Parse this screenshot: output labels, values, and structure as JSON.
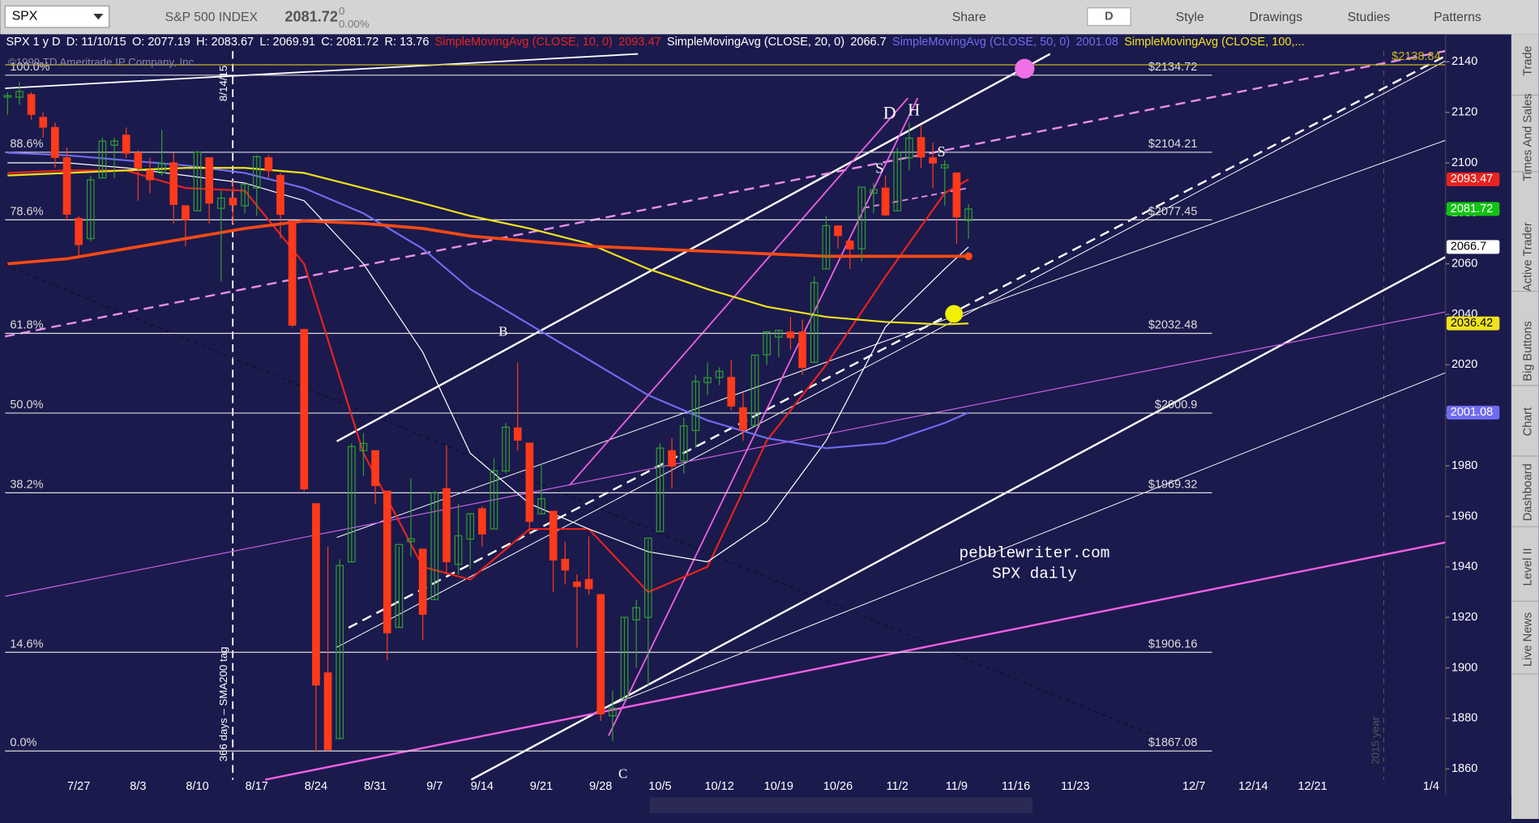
{
  "toolbar": {
    "symbol": "SPX",
    "name": "S&P 500 INDEX",
    "last": 2081.72,
    "change": 0,
    "change_pct": "0.00%",
    "period": "D",
    "buttons": [
      "Share",
      "Style",
      "Drawings",
      "Studies",
      "Patterns"
    ]
  },
  "sidebar": [
    "Trade",
    "Times And Sales",
    "Active Trader",
    "Big Buttons",
    "Chart",
    "Dashboard",
    "Level II",
    "Live News"
  ],
  "chart_data": {
    "type": "candlestick",
    "header": "SPX 1 y D",
    "header_fields": [
      "D: 11/10/15",
      "O: 2077.19",
      "H: 2083.67",
      "L: 2069.91",
      "C: 2081.72",
      "R: 13.76"
    ],
    "up_color": "#2f9e2f",
    "down_color": "#ff3a1a",
    "categories": [
      "7/17",
      "7/20",
      "7/21",
      "7/22",
      "7/23",
      "7/24",
      "7/27",
      "7/28",
      "7/29",
      "7/30",
      "7/31",
      "8/3",
      "8/4",
      "8/5",
      "8/6",
      "8/7",
      "8/10",
      "8/11",
      "8/12",
      "8/13",
      "8/14",
      "8/17",
      "8/18",
      "8/19",
      "8/20",
      "8/21",
      "8/24",
      "8/25",
      "8/26",
      "8/27",
      "8/28",
      "8/31",
      "9/1",
      "9/2",
      "9/3",
      "9/4",
      "9/8",
      "9/9",
      "9/10",
      "9/11",
      "9/14",
      "9/15",
      "9/16",
      "9/17",
      "9/18",
      "9/21",
      "9/22",
      "9/23",
      "9/24",
      "9/25",
      "9/28",
      "9/29",
      "9/30",
      "10/1",
      "10/2",
      "10/5",
      "10/6",
      "10/7",
      "10/8",
      "10/9",
      "10/12",
      "10/13",
      "10/14",
      "10/15",
      "10/16",
      "10/19",
      "10/20",
      "10/21",
      "10/22",
      "10/23",
      "10/26",
      "10/27",
      "10/28",
      "10/29",
      "10/30",
      "11/2",
      "11/3",
      "11/4",
      "11/5",
      "11/6",
      "11/9",
      "11/10"
    ],
    "open": [
      2126,
      2126,
      2127,
      2118,
      2114,
      2102,
      2078,
      2070,
      2094,
      2107,
      2111,
      2104,
      2097,
      2096,
      2100,
      2083,
      2081,
      2102,
      2082,
      2086,
      2083,
      2090,
      2102,
      2095,
      2077,
      2034,
      1965,
      1898,
      1872,
      1942,
      1986,
      1986,
      1970,
      1916,
      1950,
      1947,
      1927,
      1971,
      1941,
      1951,
      1963,
      1955,
      1978,
      1995,
      1989,
      1961,
      1962,
      1943,
      1934,
      1935,
      1929,
      1881,
      1888,
      1919,
      1920,
      1954,
      1986,
      1982,
      1994,
      2013,
      2015,
      2015,
      2003,
      1996,
      2024,
      2031,
      2033,
      2033,
      2021,
      2058,
      2075,
      2069,
      2066,
      2088,
      2090,
      2081,
      2102,
      2110,
      2102,
      2098,
      2096,
      2077.19
    ],
    "high": [
      2128,
      2132,
      2128,
      2120,
      2116,
      2106,
      2079,
      2095,
      2110,
      2110,
      2114,
      2105,
      2102,
      2113,
      2104,
      2083,
      2105,
      2102,
      2089,
      2093,
      2092,
      2103,
      2103,
      2096,
      2077,
      2034,
      1965,
      1948,
      1943,
      1989,
      1993,
      1986,
      1970,
      1948,
      1975,
      1947,
      1970,
      1988,
      1965,
      1961,
      1964,
      1983,
      1997,
      2021,
      1989,
      1981,
      1962,
      1950,
      1937,
      1952,
      1929,
      1891,
      1920,
      1927,
      1951,
      1989,
      1991,
      1999,
      2016,
      2021,
      2019,
      2022,
      2009,
      2024,
      2033,
      2034,
      2039,
      2038,
      2055,
      2079,
      2075,
      2070,
      2090,
      2092,
      2095,
      2106,
      2116,
      2115,
      2108,
      2101,
      2096,
      2083.67
    ],
    "low": [
      2119,
      2123,
      2117,
      2110,
      2098,
      2077,
      2063,
      2069,
      2094,
      2094,
      2102,
      2085,
      2088,
      2095,
      2076,
      2067,
      2081,
      2076,
      2053,
      2076,
      2080,
      2079,
      2094,
      2070,
      2035,
      1970,
      1867,
      1867,
      1872,
      1942,
      1976,
      1965,
      1903,
      1916,
      1944,
      1911,
      1927,
      1937,
      1937,
      1939,
      1948,
      1955,
      1977,
      1986,
      1953,
      1961,
      1930,
      1933,
      1908,
      1929,
      1879,
      1871,
      1888,
      1900,
      1893,
      1954,
      1971,
      1977,
      1987,
      2008,
      2012,
      2002,
      1990,
      1996,
      2020,
      2023,
      2026,
      2016,
      2021,
      2058,
      2066,
      2058,
      2061,
      2080,
      2079,
      2081,
      2097,
      2098,
      2090,
      2083,
      2068,
      2069.91
    ],
    "close": [
      2126.64,
      2128.28,
      2119.21,
      2114.15,
      2102.15,
      2079.65,
      2067.64,
      2093.25,
      2108.57,
      2108.63,
      2103.84,
      2098.04,
      2093.32,
      2099.84,
      2083.56,
      2077.57,
      2104.18,
      2084.07,
      2086.05,
      2083.39,
      2091.54,
      2102.44,
      2096.92,
      2079.61,
      2035.73,
      1970.89,
      1893.21,
      1867.61,
      1940.51,
      1987.66,
      1988.87,
      1972.18,
      1913.85,
      1948.86,
      1951.13,
      1921.22,
      1969.41,
      1942.04,
      1952.29,
      1961.05,
      1953.03,
      1978.09,
      1995.31,
      1990.2,
      1958.03,
      1966.97,
      1942.74,
      1938.76,
      1932.24,
      1931.34,
      1881.77,
      1884.09,
      1920.03,
      1923.82,
      1951.36,
      1987.05,
      1979.92,
      1995.83,
      2013.43,
      2014.89,
      2017.46,
      2003.69,
      1994.24,
      2023.86,
      2033.11,
      2033.66,
      2030.77,
      2018.94,
      2052.51,
      2075.15,
      2071.18,
      2065.89,
      2090.35,
      2089.41,
      2079.36,
      2104.05,
      2109.79,
      2102.31,
      2099.93,
      2099.2,
      2078.58,
      2081.72
    ],
    "series": [
      {
        "name": "SimpleMovingAvg (CLOSE, 10, 0)",
        "color": "#e8231e",
        "tag": 2093.47,
        "legend_shows_tag": true,
        "x": [
          "7/17",
          "7/24",
          "7/31",
          "8/7",
          "8/14",
          "8/21",
          "8/28",
          "9/4",
          "9/11",
          "9/18",
          "9/25",
          "10/2",
          "10/9",
          "10/16",
          "10/23",
          "10/30",
          "11/6",
          "11/10"
        ],
        "values": [
          2096,
          2097,
          2097,
          2090,
          2089,
          2060,
          1985,
          1940,
          1935,
          1955,
          1955,
          1930,
          1940,
          1990,
          2020,
          2055,
          2088,
          2093.47
        ]
      },
      {
        "name": "SimpleMovingAvg (CLOSE, 20, 0)",
        "color": "#ffffff",
        "tag": 2066.7,
        "legend_shows_tag": true,
        "x": [
          "7/17",
          "7/24",
          "7/31",
          "8/7",
          "8/14",
          "8/21",
          "8/28",
          "9/4",
          "9/11",
          "9/18",
          "9/25",
          "10/2",
          "10/9",
          "10/16",
          "10/23",
          "10/30",
          "11/6",
          "11/10"
        ],
        "values": [
          2100,
          2100,
          2098,
          2095,
          2092,
          2085,
          2060,
          2025,
          1985,
          1965,
          1955,
          1946,
          1942,
          1958,
          1990,
          2035,
          2058,
          2066.7
        ]
      },
      {
        "name": "SimpleMovingAvg (CLOSE, 50, 0)",
        "color": "#6f6cf0",
        "tag": 2001.08,
        "legend_shows_tag": true,
        "x": [
          "7/17",
          "7/24",
          "7/31",
          "8/7",
          "8/14",
          "8/21",
          "8/28",
          "9/4",
          "9/11",
          "9/18",
          "9/25",
          "10/2",
          "10/9",
          "10/16",
          "10/23",
          "10/30",
          "11/6",
          "11/10"
        ],
        "values": [
          2104,
          2103,
          2101,
          2099,
          2096,
          2090,
          2080,
          2066,
          2050,
          2036,
          2022,
          2008,
          1998,
          1991,
          1987,
          1989,
          1997,
          2001.08
        ]
      },
      {
        "name": "SimpleMovingAvg (CLOSE, 100,...",
        "color": "#f0e21c",
        "tag": 2036.42,
        "legend_shows_tag": false,
        "x": [
          "7/17",
          "7/24",
          "7/31",
          "8/7",
          "8/14",
          "8/21",
          "8/28",
          "9/4",
          "9/11",
          "9/18",
          "9/25",
          "10/2",
          "10/9",
          "10/16",
          "10/23",
          "10/30",
          "11/6",
          "11/10"
        ],
        "values": [
          2095,
          2096,
          2097,
          2098,
          2098,
          2096,
          2090,
          2084,
          2079,
          2074,
          2068,
          2058,
          2050,
          2043,
          2039,
          2037,
          2036,
          2036.42
        ]
      },
      {
        "color": "#ff4a14",
        "x": [
          "7/17",
          "7/24",
          "7/31",
          "8/7",
          "8/14",
          "8/21",
          "8/28",
          "9/4",
          "9/11",
          "9/18",
          "9/25",
          "10/2",
          "10/9",
          "10/16",
          "10/23",
          "10/30",
          "11/6",
          "11/10"
        ],
        "values": [
          2060,
          2062,
          2066,
          2070,
          2074,
          2077,
          2076,
          2074,
          2071,
          2069,
          2067,
          2066,
          2065,
          2064,
          2063,
          2063,
          2063,
          2063
        ]
      }
    ],
    "fib_levels": [
      {
        "pct": "100.0%",
        "price": {
          "value": 2134.72,
          "label": "$2134.72"
        }
      },
      {
        "pct": "88.6%",
        "price": {
          "value": 2104.21,
          "label": "$2104.21"
        }
      },
      {
        "pct": "78.6%",
        "price": {
          "value": 2077.45,
          "label": "$2077.45"
        }
      },
      {
        "pct": "61.8%",
        "price": {
          "value": 2032.48,
          "label": "$2032.48"
        }
      },
      {
        "pct": "50.0%",
        "price": {
          "value": 2000.9,
          "label": "$2000.9"
        }
      },
      {
        "pct": "38.2%",
        "price": {
          "value": 1969.32,
          "label": "$1969.32"
        }
      },
      {
        "pct": "14.6%",
        "price": {
          "value": 1906.16,
          "label": "$1906.16"
        }
      },
      {
        "pct": "0.0%",
        "price": {
          "value": 1867.08,
          "label": "$1867.08"
        }
      }
    ],
    "level_line": {
      "value": 2138.84,
      "label": "$2138.84"
    },
    "annotations": [
      "D",
      "H",
      "S",
      "S",
      "B",
      "C",
      "pebblewriter.com",
      "SPX daily",
      "8/14/15",
      "366 days – SMA200 tag",
      "2015 year",
      "©1999 TD Ameritrade IP Company, Inc."
    ],
    "ylim": [
      1855.7,
      2150.9
    ],
    "yticks": [
      1860,
      1880,
      1900,
      1920,
      1940,
      1960,
      1980,
      2000,
      2020,
      2040,
      2060,
      2080,
      2100,
      2120,
      2140
    ],
    "xticks": [
      "7/27",
      "8/3",
      "8/10",
      "8/17",
      "8/24",
      "8/31",
      "9/7",
      "9/14",
      "9/21",
      "9/28",
      "10/5",
      "10/12",
      "10/19",
      "10/26",
      "11/2",
      "11/9",
      "11/16",
      "11/23",
      "12/7",
      "12/14",
      "12/21",
      "1/4"
    ]
  }
}
